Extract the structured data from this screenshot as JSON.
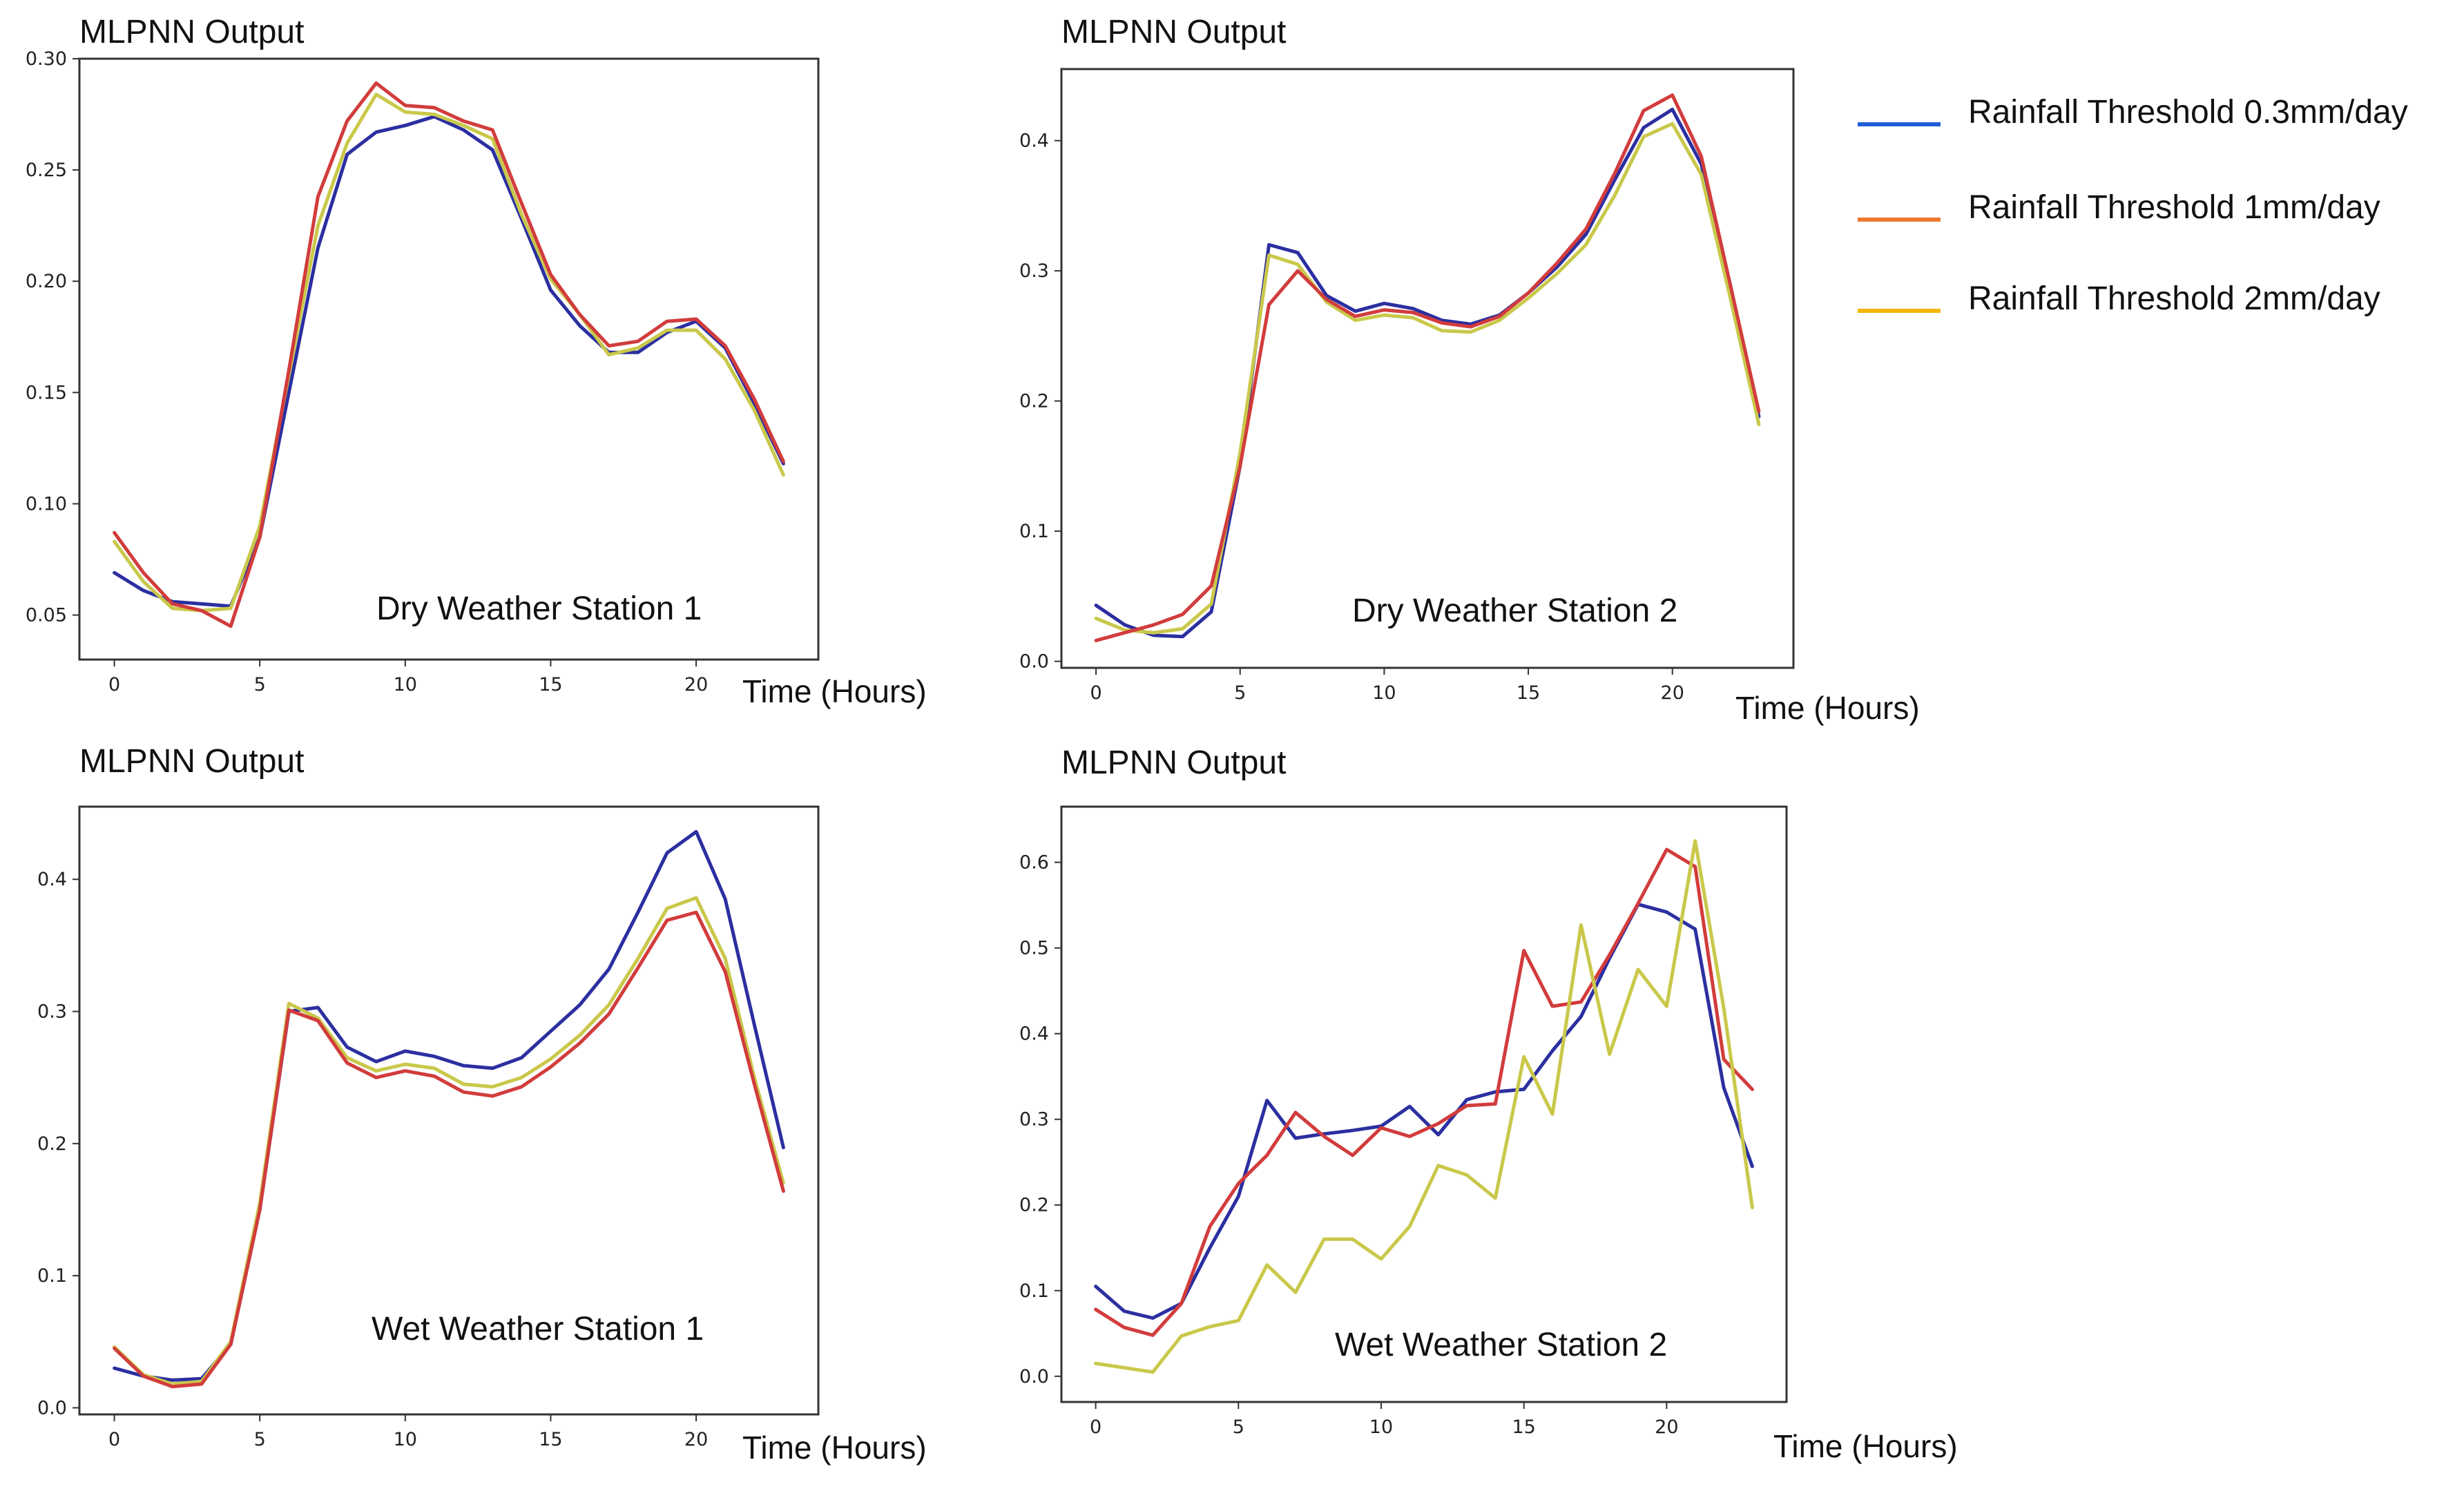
{
  "legend": {
    "items": [
      {
        "label": "Rainfall Threshold 0.3mm/day",
        "color": "#1f5fd6"
      },
      {
        "label": "Rainfall Threshold 1mm/day",
        "color": "#f07830"
      },
      {
        "label": "Rainfall Threshold 2mm/day",
        "color": "#f2b705"
      }
    ]
  },
  "chart_data": [
    {
      "type": "line",
      "title": "MLPNN Output",
      "annotation": "Dry Weather Station 1",
      "xlabel": "Time (Hours)",
      "ylabel": "",
      "xlim": [
        -1.2,
        24.2
      ],
      "ylim": [
        0.03,
        0.3
      ],
      "xticks": [
        0,
        5,
        10,
        15,
        20
      ],
      "xtick_labels": [
        "0",
        "5",
        "10",
        "15",
        "20"
      ],
      "yticks": [
        0.05,
        0.1,
        0.15,
        0.2,
        0.25,
        0.3
      ],
      "ytick_labels": [
        "0.05",
        "0.10",
        "0.15",
        "0.20",
        "0.25",
        "0.30"
      ],
      "x": [
        0,
        1,
        2,
        3,
        4,
        5,
        6,
        7,
        8,
        9,
        10,
        11,
        12,
        13,
        14,
        15,
        16,
        17,
        18,
        19,
        20,
        21,
        22,
        23
      ],
      "series": [
        {
          "name": "Rainfall Threshold 0.3mm/day",
          "color": "#2b2fa0",
          "values": [
            0.069,
            0.061,
            0.056,
            0.055,
            0.054,
            0.085,
            0.15,
            0.215,
            0.257,
            0.267,
            0.27,
            0.274,
            0.268,
            0.259,
            0.228,
            0.196,
            0.18,
            0.168,
            0.168,
            0.177,
            0.182,
            0.17,
            0.145,
            0.118
          ]
        },
        {
          "name": "Rainfall Threshold 2mm/day",
          "color": "#c9c84a",
          "values": [
            0.083,
            0.065,
            0.053,
            0.052,
            0.053,
            0.09,
            0.158,
            0.225,
            0.262,
            0.284,
            0.276,
            0.275,
            0.27,
            0.264,
            0.23,
            0.201,
            0.185,
            0.167,
            0.17,
            0.178,
            0.178,
            0.165,
            0.142,
            0.113
          ]
        },
        {
          "name": "Rainfall Threshold 1mm/day",
          "color": "#d23c3c",
          "values": [
            0.087,
            0.069,
            0.055,
            0.052,
            0.045,
            0.085,
            0.16,
            0.238,
            0.272,
            0.289,
            0.279,
            0.278,
            0.272,
            0.268,
            0.235,
            0.203,
            0.185,
            0.171,
            0.173,
            0.182,
            0.183,
            0.171,
            0.147,
            0.119
          ]
        }
      ]
    },
    {
      "type": "line",
      "title": "MLPNN Output",
      "annotation": "Dry Weather Station 2",
      "xlabel": "Time (Hours)",
      "ylabel": "",
      "xlim": [
        -1.2,
        24.2
      ],
      "ylim": [
        -0.005,
        0.455
      ],
      "xticks": [
        0,
        5,
        10,
        15,
        20
      ],
      "xtick_labels": [
        "0",
        "5",
        "10",
        "15",
        "20"
      ],
      "yticks": [
        0.0,
        0.1,
        0.2,
        0.3,
        0.4
      ],
      "ytick_labels": [
        "0.0",
        "0.1",
        "0.2",
        "0.3",
        "0.4"
      ],
      "x": [
        0,
        1,
        2,
        3,
        4,
        5,
        6,
        7,
        8,
        9,
        10,
        11,
        12,
        13,
        14,
        15,
        16,
        17,
        18,
        19,
        20,
        21,
        22,
        23
      ],
      "series": [
        {
          "name": "Rainfall Threshold 0.3mm/day",
          "color": "#2b2fa0",
          "values": [
            0.043,
            0.028,
            0.02,
            0.019,
            0.038,
            0.15,
            0.32,
            0.314,
            0.281,
            0.269,
            0.275,
            0.271,
            0.262,
            0.259,
            0.266,
            0.283,
            0.303,
            0.328,
            0.37,
            0.41,
            0.424,
            0.382,
            0.29,
            0.188
          ]
        },
        {
          "name": "Rainfall Threshold 2mm/day",
          "color": "#c9c84a",
          "values": [
            0.033,
            0.024,
            0.022,
            0.025,
            0.044,
            0.16,
            0.312,
            0.305,
            0.276,
            0.262,
            0.266,
            0.264,
            0.254,
            0.253,
            0.262,
            0.279,
            0.298,
            0.32,
            0.358,
            0.403,
            0.413,
            0.374,
            0.28,
            0.182
          ]
        },
        {
          "name": "Rainfall Threshold 1mm/day",
          "color": "#d23c3c",
          "values": [
            0.016,
            0.022,
            0.028,
            0.036,
            0.058,
            0.15,
            0.274,
            0.3,
            0.278,
            0.265,
            0.27,
            0.268,
            0.26,
            0.257,
            0.265,
            0.283,
            0.306,
            0.332,
            0.375,
            0.423,
            0.435,
            0.388,
            0.29,
            0.192
          ]
        }
      ]
    },
    {
      "type": "line",
      "title": "MLPNN Output",
      "annotation": "Wet Weather Station 1",
      "xlabel": "Time (Hours)",
      "ylabel": "",
      "xlim": [
        -1.2,
        24.2
      ],
      "ylim": [
        -0.005,
        0.455
      ],
      "xticks": [
        0,
        5,
        10,
        15,
        20
      ],
      "xtick_labels": [
        "0",
        "5",
        "10",
        "15",
        "20"
      ],
      "yticks": [
        0.0,
        0.1,
        0.2,
        0.3,
        0.4
      ],
      "ytick_labels": [
        "0.0",
        "0.1",
        "0.2",
        "0.3",
        "0.4"
      ],
      "x": [
        0,
        1,
        2,
        3,
        4,
        5,
        6,
        7,
        8,
        9,
        10,
        11,
        12,
        13,
        14,
        15,
        16,
        17,
        18,
        19,
        20,
        21,
        22,
        23
      ],
      "series": [
        {
          "name": "Rainfall Threshold 0.3mm/day",
          "color": "#2b2fa0",
          "values": [
            0.03,
            0.024,
            0.021,
            0.022,
            0.048,
            0.15,
            0.3,
            0.303,
            0.273,
            0.262,
            0.27,
            0.266,
            0.259,
            0.257,
            0.265,
            0.285,
            0.305,
            0.332,
            0.375,
            0.42,
            0.436,
            0.385,
            0.29,
            0.197
          ]
        },
        {
          "name": "Rainfall Threshold 2mm/day",
          "color": "#c9c84a",
          "values": [
            0.046,
            0.025,
            0.018,
            0.02,
            0.05,
            0.155,
            0.306,
            0.295,
            0.265,
            0.255,
            0.26,
            0.257,
            0.245,
            0.243,
            0.25,
            0.264,
            0.282,
            0.305,
            0.34,
            0.378,
            0.386,
            0.34,
            0.25,
            0.17
          ]
        },
        {
          "name": "Rainfall Threshold 1mm/day",
          "color": "#d23c3c",
          "values": [
            0.045,
            0.024,
            0.016,
            0.018,
            0.048,
            0.15,
            0.301,
            0.293,
            0.261,
            0.25,
            0.255,
            0.251,
            0.239,
            0.236,
            0.243,
            0.258,
            0.276,
            0.298,
            0.333,
            0.369,
            0.375,
            0.33,
            0.245,
            0.164
          ]
        }
      ]
    },
    {
      "type": "line",
      "title": "MLPNN Output",
      "annotation": "Wet Weather Station 2",
      "xlabel": "Time (Hours)",
      "ylabel": "",
      "xlim": [
        -1.2,
        24.2
      ],
      "ylim": [
        -0.03,
        0.665
      ],
      "xticks": [
        0,
        5,
        10,
        15,
        20
      ],
      "xtick_labels": [
        "0",
        "5",
        "10",
        "15",
        "20"
      ],
      "yticks": [
        0.0,
        0.1,
        0.2,
        0.3,
        0.4,
        0.5,
        0.6
      ],
      "ytick_labels": [
        "0.0",
        "0.1",
        "0.2",
        "0.3",
        "0.4",
        "0.5",
        "0.6"
      ],
      "x": [
        0,
        1,
        2,
        3,
        4,
        5,
        6,
        7,
        8,
        9,
        10,
        11,
        12,
        13,
        14,
        15,
        16,
        17,
        18,
        19,
        20,
        21,
        22,
        23
      ],
      "series": [
        {
          "name": "Rainfall Threshold 0.3mm/day",
          "color": "#2b2fa0",
          "values": [
            0.105,
            0.076,
            0.068,
            0.085,
            0.15,
            0.21,
            0.322,
            0.278,
            0.283,
            0.287,
            0.292,
            0.315,
            0.282,
            0.323,
            0.332,
            0.335,
            0.38,
            0.42,
            0.488,
            0.551,
            0.542,
            0.522,
            0.337,
            0.245
          ]
        },
        {
          "name": "Rainfall Threshold 1mm/day",
          "color": "#d23c3c",
          "values": [
            0.078,
            0.057,
            0.048,
            0.085,
            0.175,
            0.225,
            0.258,
            0.308,
            0.28,
            0.258,
            0.29,
            0.28,
            0.295,
            0.316,
            0.318,
            0.497,
            0.432,
            0.437,
            0.492,
            0.552,
            0.615,
            0.595,
            0.37,
            0.335
          ]
        },
        {
          "name": "Rainfall Threshold 2mm/day",
          "color": "#c9c84a",
          "values": [
            0.015,
            0.01,
            0.005,
            0.047,
            0.058,
            0.065,
            0.13,
            0.098,
            0.16,
            0.16,
            0.137,
            0.175,
            0.246,
            0.235,
            0.208,
            0.373,
            0.306,
            0.527,
            0.376,
            0.475,
            0.432,
            0.625,
            0.43,
            0.197
          ]
        }
      ]
    }
  ]
}
